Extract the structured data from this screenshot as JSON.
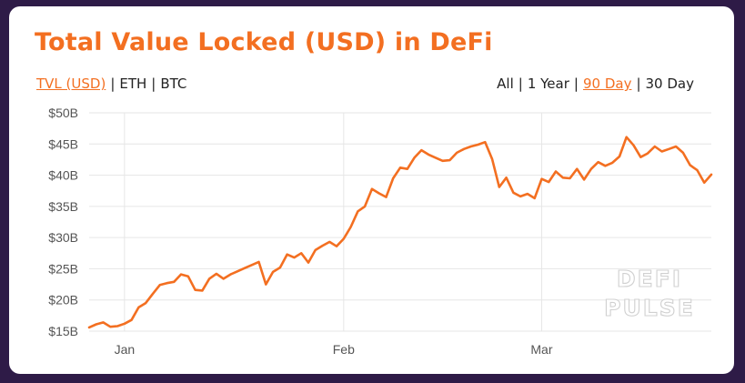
{
  "title": "Total Value Locked (USD) in DeFi",
  "metric_toggles": [
    {
      "label": "TVL (USD)",
      "active": true
    },
    {
      "label": "ETH",
      "active": false
    },
    {
      "label": "BTC",
      "active": false
    }
  ],
  "range_toggles": [
    {
      "label": "All",
      "active": false
    },
    {
      "label": "1 Year",
      "active": false
    },
    {
      "label": "90 Day",
      "active": true
    },
    {
      "label": "30 Day",
      "active": false
    }
  ],
  "watermark": {
    "line1": "DEFI",
    "line2": "PULSE"
  },
  "colors": {
    "accent": "#f36f21",
    "background": "#2e1b47",
    "grid": "#e6e6e6"
  },
  "chart_data": {
    "type": "line",
    "title": "Total Value Locked (USD) in DeFi",
    "xlabel": "",
    "ylabel": "",
    "x_ticks": [
      "Jan",
      "Feb",
      "Mar"
    ],
    "x_tick_days": [
      5,
      36,
      64
    ],
    "y_ticks": [
      "$15B",
      "$20B",
      "$25B",
      "$30B",
      "$35B",
      "$40B",
      "$45B",
      "$50B"
    ],
    "ylim": [
      15,
      50
    ],
    "xlim": [
      0,
      88
    ],
    "grid": true,
    "series": [
      {
        "color": "#f36f21",
        "x": [
          0,
          1,
          2,
          3,
          4,
          5,
          6,
          7,
          8,
          9,
          10,
          11,
          12,
          13,
          14,
          15,
          16,
          17,
          18,
          19,
          20,
          21,
          22,
          23,
          24,
          25,
          26,
          27,
          28,
          29,
          30,
          31,
          32,
          33,
          34,
          35,
          36,
          37,
          38,
          39,
          40,
          41,
          42,
          43,
          44,
          45,
          46,
          47,
          48,
          49,
          50,
          51,
          52,
          53,
          54,
          55,
          56,
          57,
          58,
          59,
          60,
          61,
          62,
          63,
          64,
          65,
          66,
          67,
          68,
          69,
          70,
          71,
          72,
          73,
          74,
          75,
          76,
          77,
          78,
          79,
          80,
          81,
          82,
          83,
          84,
          85,
          86,
          87,
          88
        ],
        "values": [
          15.6,
          16.1,
          16.4,
          15.7,
          15.8,
          16.2,
          16.8,
          18.8,
          19.5,
          21.0,
          22.4,
          22.7,
          22.9,
          24.1,
          23.8,
          21.6,
          21.5,
          23.4,
          24.2,
          23.4,
          24.1,
          24.6,
          25.1,
          25.6,
          26.1,
          22.5,
          24.5,
          25.2,
          27.3,
          26.8,
          27.5,
          26.0,
          28.0,
          28.7,
          29.3,
          28.6,
          29.8,
          31.7,
          34.2,
          35.0,
          37.8,
          37.1,
          36.5,
          39.5,
          41.2,
          41.0,
          42.8,
          44.0,
          43.3,
          42.8,
          42.3,
          42.4,
          43.6,
          44.2,
          44.6,
          44.9,
          45.3,
          42.6,
          38.1,
          39.6,
          37.2,
          36.6,
          37.0,
          36.3,
          39.4,
          38.9,
          40.6,
          39.6,
          39.5,
          41.0,
          39.3,
          41.0,
          42.1,
          41.5,
          42.0,
          43.0,
          46.1,
          44.8,
          42.9,
          43.5,
          44.6,
          43.8,
          44.2,
          44.6,
          43.6,
          41.6,
          40.8,
          38.8,
          40.1
        ]
      }
    ]
  }
}
